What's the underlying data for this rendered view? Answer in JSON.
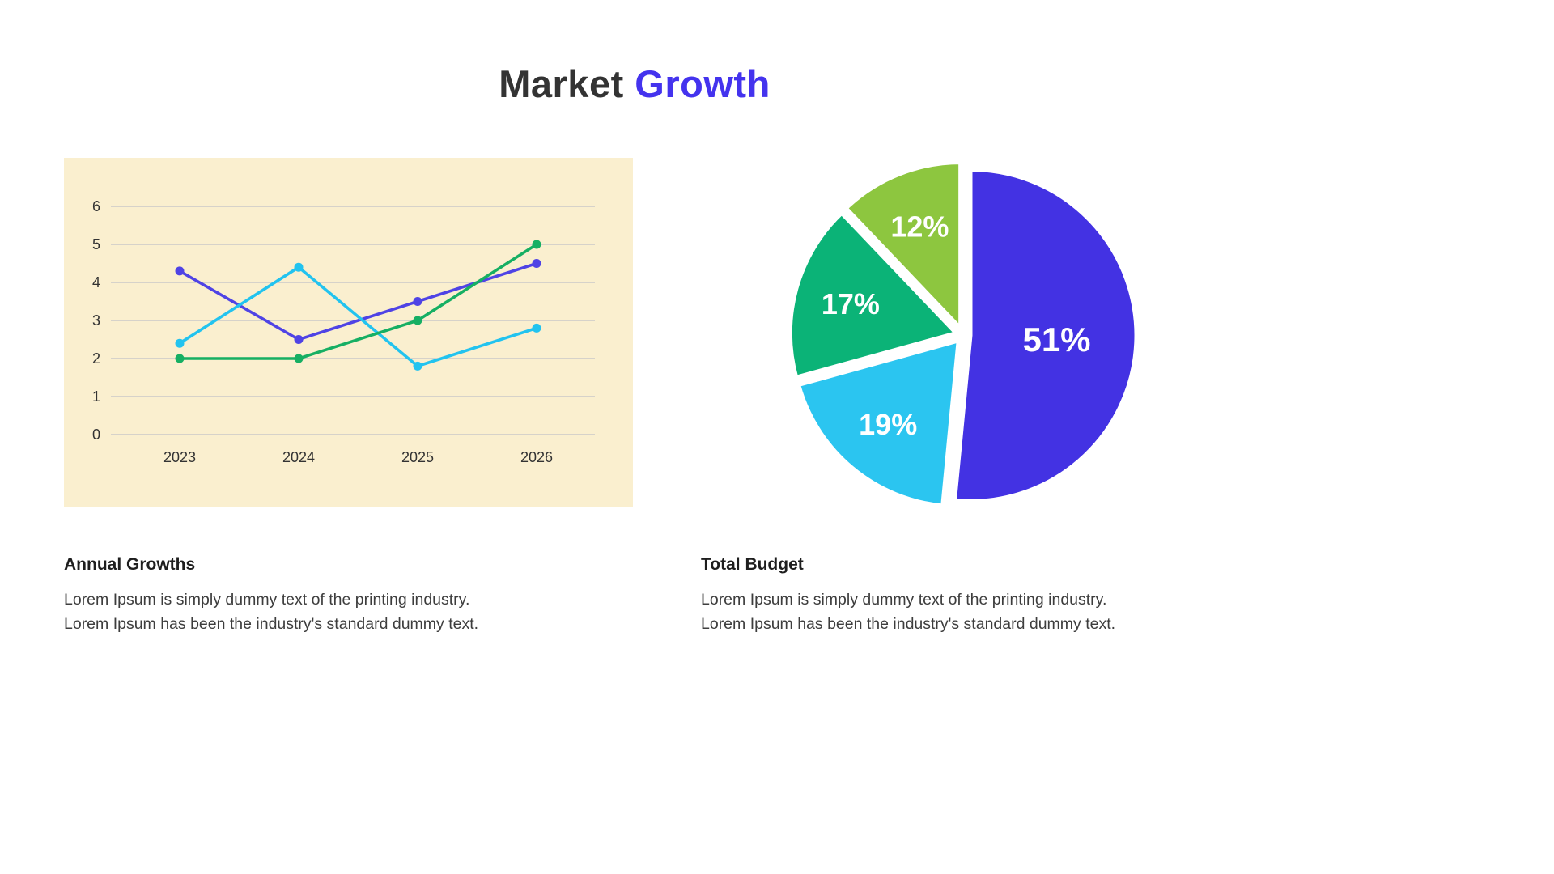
{
  "title": {
    "part1": "Market",
    "part2": "Growth"
  },
  "colors": {
    "title_accent": "#4433ee",
    "panel_bg": "#faefcf",
    "grid": "#c9c9c9",
    "tick_text": "#333333",
    "series_purple": "#4f43e5",
    "series_cyan": "#22c3ef",
    "series_green": "#16af63",
    "pie_blue": "#4332e3",
    "pie_cyan": "#2bc5f0",
    "pie_green": "#0bb377",
    "pie_lime": "#8dc63f"
  },
  "chart_data": [
    {
      "type": "line",
      "title": "Annual Growths",
      "x": [
        "2023",
        "2024",
        "2025",
        "2026"
      ],
      "series": [
        {
          "name": "purple-series",
          "color_key": "series_purple",
          "values": [
            4.3,
            2.5,
            3.5,
            4.5
          ]
        },
        {
          "name": "cyan-series",
          "color_key": "series_cyan",
          "values": [
            2.4,
            4.4,
            1.8,
            2.8
          ]
        },
        {
          "name": "green-series",
          "color_key": "series_green",
          "values": [
            2.0,
            2.0,
            3.0,
            5.0
          ]
        }
      ],
      "ylim": [
        0,
        6
      ],
      "yticks": [
        0,
        1,
        2,
        3,
        4,
        5,
        6
      ],
      "grid": true,
      "legend": "none",
      "plot_bg": "#faefcf"
    },
    {
      "type": "pie",
      "title": "Total Budget",
      "start": "top",
      "direction": "clockwise",
      "exploded": true,
      "slices": [
        {
          "label": "51%",
          "value": 51,
          "color_key": "pie_blue"
        },
        {
          "label": "19%",
          "value": 19,
          "color_key": "pie_cyan"
        },
        {
          "label": "17%",
          "value": 17,
          "color_key": "pie_green"
        },
        {
          "label": "12%",
          "value": 12,
          "color_key": "pie_lime"
        }
      ]
    }
  ],
  "captions": [
    {
      "line1": "Lorem Ipsum is simply dummy text of the printing industry.",
      "line2": "Lorem Ipsum has been the industry's standard dummy text."
    },
    {
      "line1": "Lorem Ipsum is simply dummy text of the printing industry.",
      "line2": "Lorem Ipsum has been the industry's standard dummy text."
    }
  ]
}
